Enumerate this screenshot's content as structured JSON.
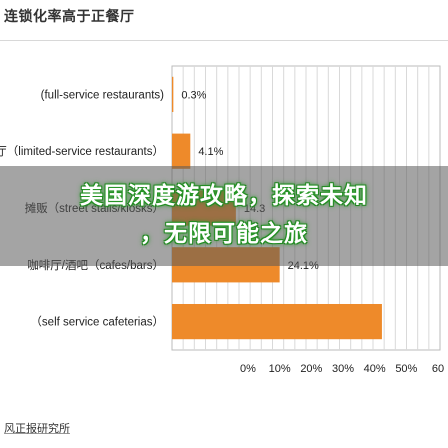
{
  "header": {
    "title": "连锁化率高于正餐厅"
  },
  "overlay": {
    "line1": "美国深度游攻略，探索未知",
    "line2": "，无限可能之旅"
  },
  "footer": {
    "source": "风正报研究所"
  },
  "chart_data": {
    "type": "bar",
    "orientation": "horizontal",
    "title": "",
    "xlabel": "",
    "ylabel": "",
    "xlim": [
      0,
      60
    ],
    "x_ticks": [
      "0%",
      "10%",
      "20%",
      "30%",
      "40%",
      "50%",
      "60"
    ],
    "grid": true,
    "bar_color": "#ee8a2a",
    "categories": [
      "(full-service restaurants)",
      "快餐厅（limited-service restaurants）",
      "摊贩（street stalls/kiosks）",
      "咖啡厅/酒吧（cafes/bars）",
      "（self service cafeterias）"
    ],
    "values": [
      0.3,
      4.1,
      14.3,
      24.1,
      47.0
    ],
    "value_labels": [
      "0.3%",
      "4.1%",
      "14.3",
      "24.1%",
      ""
    ]
  }
}
